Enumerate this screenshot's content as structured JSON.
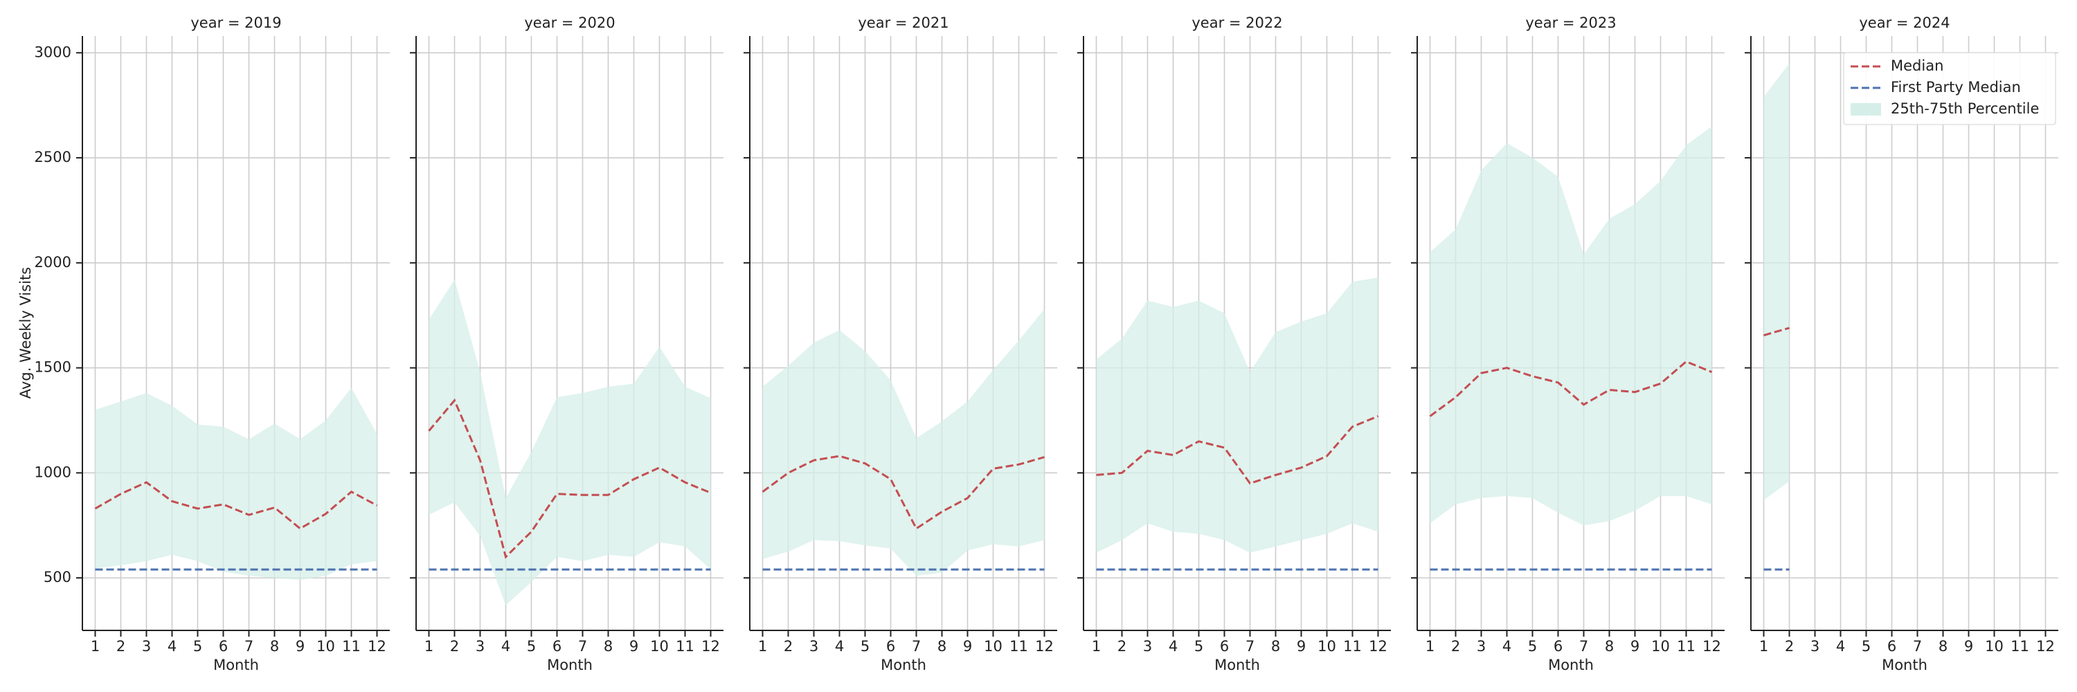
{
  "chart_data": {
    "type": "line",
    "ylabel": "Avg. Weekly Visits",
    "xlabel": "Month",
    "x": [
      1,
      2,
      3,
      4,
      5,
      6,
      7,
      8,
      9,
      10,
      11,
      12
    ],
    "xticks": [
      1,
      2,
      3,
      4,
      5,
      6,
      7,
      8,
      9,
      10,
      11,
      12
    ],
    "xlim": [
      0.5,
      12.5
    ],
    "ylim": [
      250,
      3080
    ],
    "yticks": [
      500,
      1000,
      1500,
      2000,
      2500,
      3000
    ],
    "grid": true,
    "legend": "upper right",
    "series": [
      {
        "name": "Median",
        "color": "#c44e52"
      },
      {
        "name": "First Party Median",
        "color": "#4c72b0"
      }
    ],
    "band": {
      "name": "25th-75th Percentile",
      "color": "#d5efe8"
    },
    "facets": [
      {
        "title": "year = 2019",
        "values": [
          [
            830,
            900,
            955,
            865,
            830,
            850,
            800,
            835,
            735,
            805,
            910,
            845
          ],
          [
            540,
            540,
            540,
            540,
            540,
            540,
            540,
            540,
            540,
            540,
            540,
            540
          ]
        ],
        "lower": [
          545,
          560,
          580,
          610,
          580,
          530,
          510,
          500,
          490,
          510,
          565,
          580
        ],
        "upper": [
          1300,
          1340,
          1380,
          1320,
          1230,
          1220,
          1160,
          1235,
          1160,
          1250,
          1405,
          1185
        ]
      },
      {
        "title": "year = 2020",
        "values": [
          [
            1200,
            1345,
            1060,
            600,
            720,
            900,
            895,
            895,
            970,
            1025,
            955,
            905
          ],
          [
            540,
            540,
            540,
            540,
            540,
            540,
            540,
            540,
            540,
            540,
            540,
            540
          ]
        ],
        "lower": [
          800,
          860,
          700,
          370,
          480,
          600,
          580,
          610,
          600,
          670,
          650,
          540
        ],
        "upper": [
          1730,
          1920,
          1480,
          880,
          1100,
          1360,
          1380,
          1410,
          1425,
          1600,
          1410,
          1355
        ]
      },
      {
        "title": "year = 2021",
        "values": [
          [
            910,
            1000,
            1060,
            1080,
            1045,
            970,
            735,
            815,
            880,
            1020,
            1040,
            1075
          ],
          [
            540,
            540,
            540,
            540,
            540,
            540,
            540,
            540,
            540,
            540,
            540,
            540
          ]
        ],
        "lower": [
          590,
          625,
          680,
          675,
          655,
          640,
          510,
          525,
          630,
          660,
          650,
          680
        ],
        "upper": [
          1410,
          1510,
          1620,
          1680,
          1580,
          1440,
          1165,
          1245,
          1340,
          1490,
          1630,
          1780
        ]
      },
      {
        "title": "year = 2022",
        "values": [
          [
            990,
            1000,
            1105,
            1085,
            1150,
            1120,
            950,
            990,
            1025,
            1080,
            1220,
            1270
          ],
          [
            540,
            540,
            540,
            540,
            540,
            540,
            540,
            540,
            540,
            540,
            540,
            540
          ]
        ],
        "lower": [
          620,
          680,
          760,
          720,
          710,
          680,
          620,
          650,
          680,
          710,
          760,
          720
        ],
        "upper": [
          1540,
          1640,
          1820,
          1790,
          1820,
          1760,
          1480,
          1670,
          1720,
          1760,
          1910,
          1930
        ]
      },
      {
        "title": "year = 2023",
        "values": [
          [
            1270,
            1360,
            1475,
            1500,
            1460,
            1430,
            1325,
            1395,
            1385,
            1425,
            1530,
            1480
          ],
          [
            540,
            540,
            540,
            540,
            540,
            540,
            540,
            540,
            540,
            540,
            540,
            540
          ]
        ],
        "lower": [
          760,
          850,
          880,
          890,
          880,
          810,
          750,
          770,
          820,
          890,
          890,
          850
        ],
        "upper": [
          2050,
          2160,
          2440,
          2570,
          2500,
          2410,
          2040,
          2210,
          2280,
          2390,
          2560,
          2650
        ]
      },
      {
        "title": "year = 2024",
        "values": [
          [
            1655,
            1690,
            null,
            null,
            null,
            null,
            null,
            null,
            null,
            null,
            null,
            null
          ],
          [
            540,
            540,
            null,
            null,
            null,
            null,
            null,
            null,
            null,
            null,
            null,
            null
          ]
        ],
        "lower": [
          870,
          960,
          null,
          null,
          null,
          null,
          null,
          null,
          null,
          null,
          null,
          null
        ],
        "upper": [
          2790,
          2950,
          null,
          null,
          null,
          null,
          null,
          null,
          null,
          null,
          null,
          null
        ]
      }
    ]
  }
}
